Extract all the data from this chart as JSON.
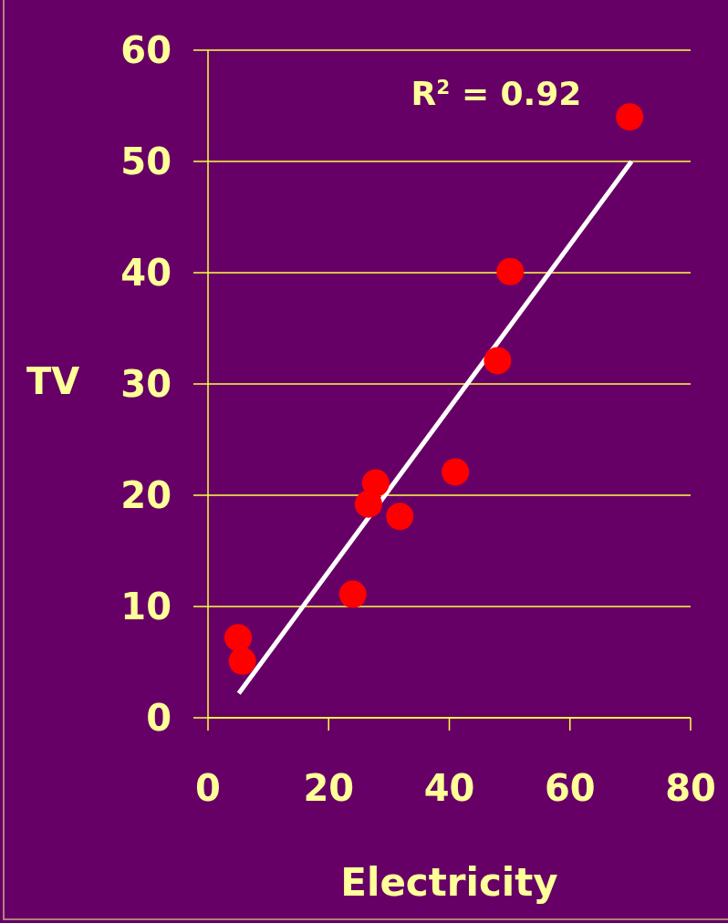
{
  "chart_data": {
    "type": "scatter",
    "xlabel": "Electricity",
    "ylabel": "TV",
    "xlim": [
      0,
      80
    ],
    "xticks": [
      0,
      20,
      40,
      60,
      80
    ],
    "ylim": [
      0,
      60
    ],
    "yticks": [
      0,
      10,
      20,
      30,
      40,
      50,
      60
    ],
    "grid": "y",
    "annotations": [
      "R$^{2}$ = 0.92"
    ],
    "series": [
      {
        "marker": "circle",
        "color": "#ff0000",
        "x": [
          5.0,
          5.7,
          24.0,
          26.6,
          27.8,
          31.8,
          41.0,
          48.0,
          50.1,
          69.9
        ],
        "values": [
          7.2,
          5.1,
          11.1,
          19.2,
          21.1,
          18.1,
          22.1,
          32.1,
          40.1,
          54.0
        ]
      },
      {
        "type": "line",
        "color": "#ffffff",
        "x": [
          5.1,
          70.2
        ],
        "values": [
          2.2,
          50.0
        ]
      }
    ]
  }
}
